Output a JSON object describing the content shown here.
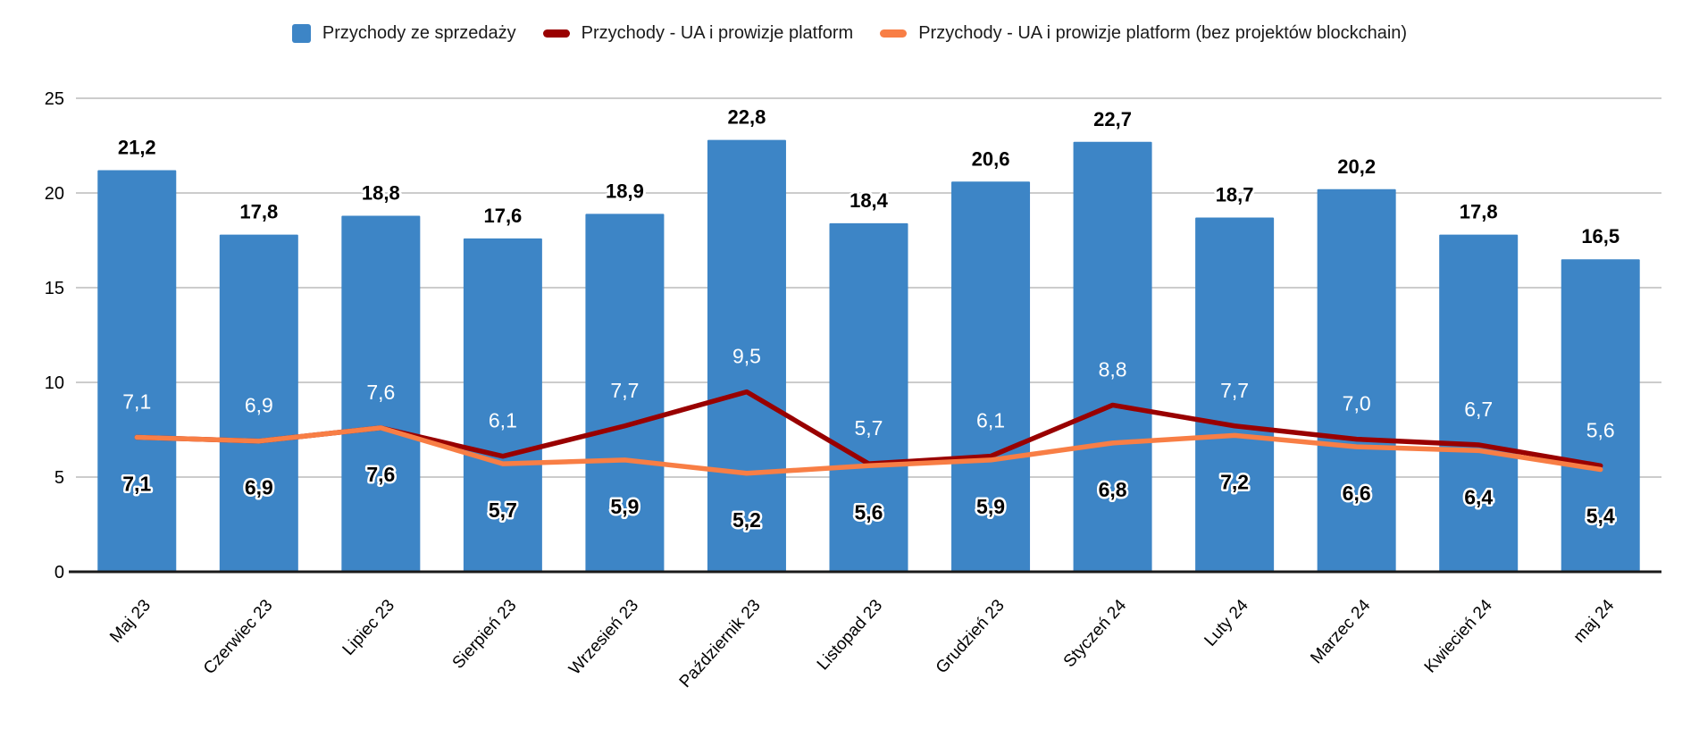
{
  "chart_data": {
    "type": "bar",
    "title": "",
    "xlabel": "",
    "ylabel": "",
    "categories": [
      "Maj 23",
      "Czerwiec 23",
      "Lipiec 23",
      "Sierpień 23",
      "Wrzesień 23",
      "Październik 23",
      "Listopad 23",
      "Grudzień 23",
      "Styczeń 24",
      "Luty 24",
      "Marzec 24",
      "Kwiecień 24",
      "maj 24"
    ],
    "series": [
      {
        "name": "Przychody ze sprzedaży",
        "type": "bar",
        "color": "#3d85c6",
        "values": [
          21.2,
          17.8,
          18.8,
          17.6,
          18.9,
          22.8,
          18.4,
          20.6,
          22.7,
          18.7,
          20.2,
          17.8,
          16.5
        ],
        "labels": [
          "21,2",
          "17,8",
          "18,8",
          "17,6",
          "18,9",
          "22,8",
          "18,4",
          "20,6",
          "22,7",
          "18,7",
          "20,2",
          "17,8",
          "16,5"
        ]
      },
      {
        "name": "Przychody - UA i prowizje platform",
        "type": "line",
        "color": "#990000",
        "values": [
          7.1,
          6.9,
          7.6,
          6.1,
          7.7,
          9.5,
          5.7,
          6.1,
          8.8,
          7.7,
          7.0,
          6.7,
          5.6
        ],
        "labels": [
          "7,1",
          "6,9",
          "7,6",
          "6,1",
          "7,7",
          "9,5",
          "5,7",
          "6,1",
          "8,8",
          "7,7",
          "7,0",
          "6,7",
          "5,6"
        ]
      },
      {
        "name": "Przychody - UA i prowizje platform (bez projektów blockchain)",
        "type": "line",
        "color": "#f87e45",
        "values": [
          7.1,
          6.9,
          7.6,
          5.7,
          5.9,
          5.2,
          5.6,
          5.9,
          6.8,
          7.2,
          6.6,
          6.4,
          5.4
        ],
        "labels": [
          "7,1",
          "6,9",
          "7,6",
          "5,7",
          "5,9",
          "5,2",
          "5,6",
          "5,9",
          "6,8",
          "7,2",
          "6,6",
          "6,4",
          "5,4"
        ]
      }
    ],
    "ylim": [
      0,
      25
    ],
    "yticks": [
      0,
      5,
      10,
      15,
      20,
      25
    ],
    "ytick_labels": [
      "0",
      "5",
      "10",
      "15",
      "20",
      "25"
    ],
    "grid": true,
    "legend_position": "top"
  },
  "colors": {
    "background": "#ffffff",
    "gridline": "#cccccc",
    "axis_line": "#1a1a1a",
    "bar_fill": "#3d85c6",
    "bar_top_label": "#000000",
    "inner_label": "#ffffff",
    "outlined_label_fill": "#000000",
    "outlined_label_stroke": "#ffffff",
    "axis_text": "#000000"
  }
}
